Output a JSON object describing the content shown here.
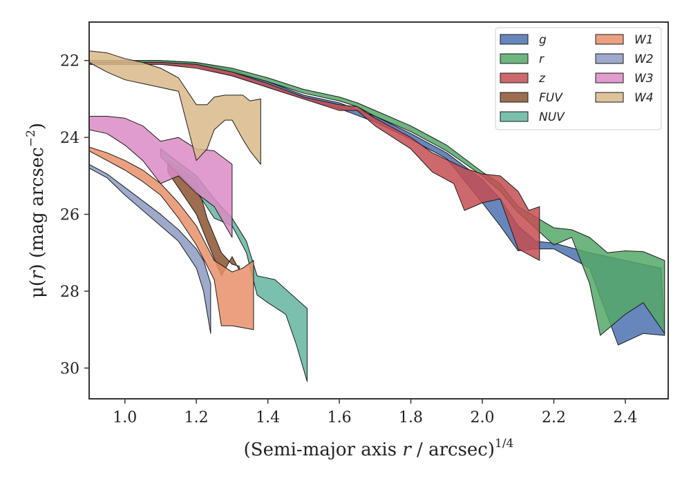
{
  "chart_data": {
    "type": "area",
    "title": "",
    "xlabel_main": "(Semi-major axis ",
    "xlabel_var": "r",
    "xlabel_tail": " / arcsec)",
    "xlabel_sup": "1/4",
    "ylabel_mu": "μ(",
    "ylabel_var": "r",
    "ylabel_tail": ") (mag arcsec",
    "ylabel_sup": "−2",
    "ylabel_close": ")",
    "xlim": [
      0.9,
      2.52
    ],
    "ylim": [
      30.8,
      21.0
    ],
    "y_inverted": true,
    "xticks": [
      1.0,
      1.2,
      1.4,
      1.6,
      1.8,
      2.0,
      2.2,
      2.4
    ],
    "xtick_labels": [
      "1.0",
      "1.2",
      "1.4",
      "1.6",
      "1.8",
      "2.0",
      "2.2",
      "2.4"
    ],
    "yticks": [
      22,
      24,
      26,
      28,
      30
    ],
    "ytick_labels": [
      "22",
      "24",
      "26",
      "28",
      "30"
    ],
    "grid": false,
    "legend_position": "top-right",
    "series": [
      {
        "name": "g",
        "color": "#4c72b0",
        "upper": [
          [
            0.9,
            22.0
          ],
          [
            1.0,
            22.0
          ],
          [
            1.1,
            22.0
          ],
          [
            1.2,
            22.05
          ],
          [
            1.3,
            22.25
          ],
          [
            1.4,
            22.55
          ],
          [
            1.5,
            22.9
          ],
          [
            1.6,
            23.1
          ],
          [
            1.7,
            23.45
          ],
          [
            1.8,
            23.9
          ],
          [
            1.9,
            24.4
          ],
          [
            2.0,
            25.1
          ],
          [
            2.05,
            25.6
          ],
          [
            2.1,
            26.3
          ],
          [
            2.15,
            26.7
          ],
          [
            2.2,
            26.75
          ],
          [
            2.3,
            27.0
          ],
          [
            2.4,
            27.2
          ],
          [
            2.5,
            27.4
          ]
        ],
        "lower": [
          [
            0.9,
            22.1
          ],
          [
            1.0,
            22.1
          ],
          [
            1.1,
            22.1
          ],
          [
            1.2,
            22.15
          ],
          [
            1.3,
            22.4
          ],
          [
            1.4,
            22.7
          ],
          [
            1.5,
            23.0
          ],
          [
            1.6,
            23.25
          ],
          [
            1.7,
            23.6
          ],
          [
            1.8,
            24.05
          ],
          [
            1.9,
            24.55
          ],
          [
            2.0,
            25.7
          ],
          [
            2.05,
            26.3
          ],
          [
            2.1,
            26.95
          ],
          [
            2.15,
            26.9
          ],
          [
            2.2,
            26.9
          ],
          [
            2.3,
            27.4
          ],
          [
            2.38,
            29.4
          ],
          [
            2.45,
            29.1
          ],
          [
            2.51,
            29.15
          ]
        ]
      },
      {
        "name": "r",
        "color": "#55a868",
        "upper": [
          [
            0.9,
            22.0
          ],
          [
            1.0,
            22.0
          ],
          [
            1.1,
            22.0
          ],
          [
            1.2,
            22.05
          ],
          [
            1.3,
            22.2
          ],
          [
            1.4,
            22.45
          ],
          [
            1.5,
            22.75
          ],
          [
            1.6,
            22.95
          ],
          [
            1.65,
            23.1
          ],
          [
            1.7,
            23.3
          ],
          [
            1.8,
            23.7
          ],
          [
            1.9,
            24.2
          ],
          [
            2.0,
            24.9
          ],
          [
            2.05,
            25.2
          ],
          [
            2.1,
            25.8
          ],
          [
            2.2,
            26.35
          ],
          [
            2.25,
            26.4
          ],
          [
            2.3,
            26.6
          ],
          [
            2.35,
            27.0
          ],
          [
            2.4,
            26.95
          ],
          [
            2.45,
            26.97
          ],
          [
            2.51,
            27.2
          ]
        ],
        "lower": [
          [
            0.9,
            22.05
          ],
          [
            1.0,
            22.05
          ],
          [
            1.1,
            22.05
          ],
          [
            1.2,
            22.1
          ],
          [
            1.3,
            22.3
          ],
          [
            1.4,
            22.55
          ],
          [
            1.5,
            22.85
          ],
          [
            1.6,
            23.05
          ],
          [
            1.65,
            23.2
          ],
          [
            1.7,
            23.45
          ],
          [
            1.8,
            23.85
          ],
          [
            1.9,
            24.35
          ],
          [
            2.0,
            25.0
          ],
          [
            2.05,
            25.4
          ],
          [
            2.1,
            25.95
          ],
          [
            2.2,
            26.8
          ],
          [
            2.25,
            26.6
          ],
          [
            2.3,
            27.8
          ],
          [
            2.33,
            29.15
          ],
          [
            2.4,
            28.6
          ],
          [
            2.45,
            28.3
          ],
          [
            2.51,
            29.1
          ]
        ]
      },
      {
        "name": "z",
        "color": "#c44e52",
        "upper": [
          [
            0.9,
            22.05
          ],
          [
            1.0,
            22.05
          ],
          [
            1.1,
            22.05
          ],
          [
            1.2,
            22.1
          ],
          [
            1.3,
            22.3
          ],
          [
            1.4,
            22.6
          ],
          [
            1.5,
            22.95
          ],
          [
            1.6,
            23.15
          ],
          [
            1.65,
            23.2
          ],
          [
            1.7,
            23.5
          ],
          [
            1.8,
            24.0
          ],
          [
            1.86,
            24.4
          ],
          [
            1.95,
            24.8
          ],
          [
            2.0,
            24.95
          ],
          [
            2.05,
            25.0
          ],
          [
            2.1,
            25.4
          ],
          [
            2.13,
            25.9
          ],
          [
            2.16,
            25.8
          ]
        ],
        "lower": [
          [
            0.9,
            22.1
          ],
          [
            1.0,
            22.1
          ],
          [
            1.1,
            22.1
          ],
          [
            1.2,
            22.2
          ],
          [
            1.3,
            22.4
          ],
          [
            1.4,
            22.7
          ],
          [
            1.5,
            23.0
          ],
          [
            1.6,
            23.3
          ],
          [
            1.65,
            23.3
          ],
          [
            1.7,
            23.7
          ],
          [
            1.8,
            24.3
          ],
          [
            1.86,
            24.9
          ],
          [
            1.92,
            25.2
          ],
          [
            1.95,
            25.9
          ],
          [
            2.0,
            25.7
          ],
          [
            2.05,
            25.6
          ],
          [
            2.1,
            26.9
          ],
          [
            2.16,
            27.2
          ]
        ]
      },
      {
        "name": "FUV",
        "color": "#8c5330",
        "upper": [
          [
            1.12,
            24.6
          ],
          [
            1.2,
            25.1
          ],
          [
            1.23,
            26.1
          ],
          [
            1.27,
            27.0
          ],
          [
            1.3,
            27.3
          ],
          [
            1.32,
            27.35
          ]
        ],
        "lower": [
          [
            1.12,
            24.9
          ],
          [
            1.2,
            26.0
          ],
          [
            1.23,
            26.7
          ],
          [
            1.27,
            27.6
          ],
          [
            1.3,
            27.1
          ],
          [
            1.32,
            27.45
          ]
        ]
      },
      {
        "name": "NUV",
        "color": "#64b5a0",
        "upper": [
          [
            1.1,
            24.3
          ],
          [
            1.2,
            25.0
          ],
          [
            1.25,
            25.6
          ],
          [
            1.3,
            26.1
          ],
          [
            1.34,
            26.7
          ],
          [
            1.37,
            27.6
          ],
          [
            1.42,
            27.7
          ],
          [
            1.45,
            27.95
          ],
          [
            1.48,
            28.2
          ],
          [
            1.51,
            28.45
          ]
        ],
        "lower": [
          [
            1.1,
            24.5
          ],
          [
            1.2,
            25.4
          ],
          [
            1.25,
            26.1
          ],
          [
            1.3,
            26.3
          ],
          [
            1.34,
            27.0
          ],
          [
            1.37,
            28.1
          ],
          [
            1.4,
            28.3
          ],
          [
            1.45,
            28.6
          ],
          [
            1.48,
            29.4
          ],
          [
            1.51,
            30.35
          ]
        ]
      },
      {
        "name": "W1",
        "color": "#e8906a",
        "upper": [
          [
            0.9,
            24.25
          ],
          [
            0.95,
            24.4
          ],
          [
            1.0,
            24.6
          ],
          [
            1.05,
            24.85
          ],
          [
            1.1,
            25.2
          ],
          [
            1.15,
            25.7
          ],
          [
            1.2,
            26.3
          ],
          [
            1.25,
            27.2
          ],
          [
            1.3,
            27.5
          ],
          [
            1.33,
            27.4
          ],
          [
            1.36,
            27.2
          ]
        ],
        "lower": [
          [
            0.9,
            24.35
          ],
          [
            0.95,
            24.6
          ],
          [
            1.0,
            24.85
          ],
          [
            1.05,
            25.15
          ],
          [
            1.1,
            25.5
          ],
          [
            1.15,
            26.1
          ],
          [
            1.2,
            26.8
          ],
          [
            1.25,
            27.7
          ],
          [
            1.27,
            28.9
          ],
          [
            1.3,
            28.9
          ],
          [
            1.36,
            29.0
          ]
        ]
      },
      {
        "name": "W2",
        "color": "#8c9bc3",
        "upper": [
          [
            0.9,
            24.7
          ],
          [
            0.95,
            24.95
          ],
          [
            1.0,
            25.3
          ],
          [
            1.05,
            25.65
          ],
          [
            1.1,
            26.0
          ],
          [
            1.15,
            26.4
          ],
          [
            1.2,
            26.9
          ],
          [
            1.22,
            27.2
          ],
          [
            1.24,
            27.8
          ]
        ],
        "lower": [
          [
            0.9,
            24.8
          ],
          [
            0.95,
            25.05
          ],
          [
            1.0,
            25.5
          ],
          [
            1.05,
            25.9
          ],
          [
            1.1,
            26.3
          ],
          [
            1.15,
            26.7
          ],
          [
            1.2,
            27.4
          ],
          [
            1.22,
            28.0
          ],
          [
            1.24,
            29.1
          ]
        ]
      },
      {
        "name": "W3",
        "color": "#da8bc3",
        "upper": [
          [
            0.9,
            23.45
          ],
          [
            0.95,
            23.45
          ],
          [
            1.0,
            23.5
          ],
          [
            1.05,
            23.7
          ],
          [
            1.1,
            24.1
          ],
          [
            1.15,
            24.0
          ],
          [
            1.2,
            24.3
          ],
          [
            1.25,
            24.35
          ],
          [
            1.3,
            24.7
          ]
        ],
        "lower": [
          [
            0.9,
            23.8
          ],
          [
            0.95,
            23.9
          ],
          [
            1.0,
            24.2
          ],
          [
            1.05,
            24.6
          ],
          [
            1.1,
            25.2
          ],
          [
            1.15,
            25.0
          ],
          [
            1.2,
            25.45
          ],
          [
            1.25,
            25.8
          ],
          [
            1.3,
            26.6
          ]
        ]
      },
      {
        "name": "W4",
        "color": "#d9b88a",
        "upper": [
          [
            0.9,
            21.75
          ],
          [
            0.95,
            21.8
          ],
          [
            1.0,
            21.95
          ],
          [
            1.05,
            22.05
          ],
          [
            1.1,
            22.2
          ],
          [
            1.15,
            22.45
          ],
          [
            1.2,
            23.15
          ],
          [
            1.23,
            23.15
          ],
          [
            1.25,
            22.95
          ],
          [
            1.28,
            22.9
          ],
          [
            1.3,
            22.9
          ],
          [
            1.33,
            22.9
          ],
          [
            1.35,
            23.05
          ],
          [
            1.38,
            23.0
          ]
        ],
        "lower": [
          [
            0.9,
            22.05
          ],
          [
            0.95,
            22.3
          ],
          [
            1.0,
            22.5
          ],
          [
            1.05,
            22.6
          ],
          [
            1.1,
            22.7
          ],
          [
            1.15,
            22.8
          ],
          [
            1.2,
            24.6
          ],
          [
            1.23,
            24.3
          ],
          [
            1.25,
            23.8
          ],
          [
            1.28,
            23.55
          ],
          [
            1.3,
            23.55
          ],
          [
            1.33,
            24.05
          ],
          [
            1.35,
            24.35
          ],
          [
            1.38,
            24.7
          ]
        ]
      }
    ]
  }
}
